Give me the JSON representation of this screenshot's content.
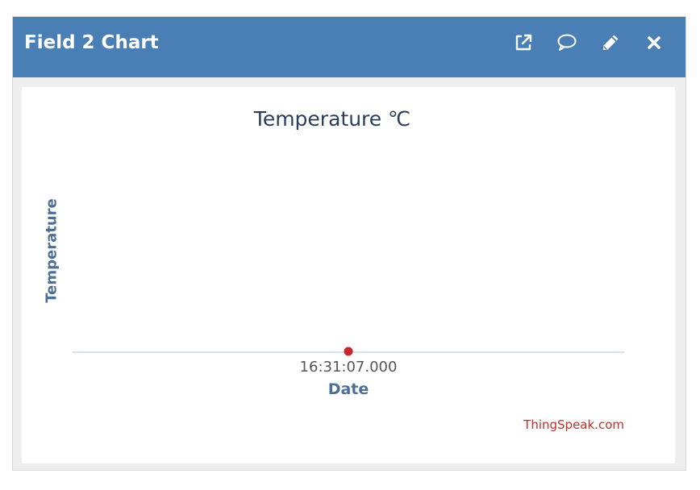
{
  "window": {
    "title": "Field 2 Chart",
    "header_color": "#4a7fb5",
    "actions": [
      {
        "name": "open-external-icon"
      },
      {
        "name": "comment-icon"
      },
      {
        "name": "pencil-icon"
      },
      {
        "name": "close-icon"
      }
    ]
  },
  "chart_data": {
    "type": "line",
    "title": "Temperature ℃",
    "xlabel": "Date",
    "ylabel": "Temperature",
    "x_ticks": [
      "16:31:07.000"
    ],
    "series": [
      {
        "color": "#c62828",
        "points": [
          {
            "x": "16:31:07.000",
            "y": null
          }
        ]
      }
    ],
    "grid": false,
    "credit": "ThingSpeak.com"
  }
}
